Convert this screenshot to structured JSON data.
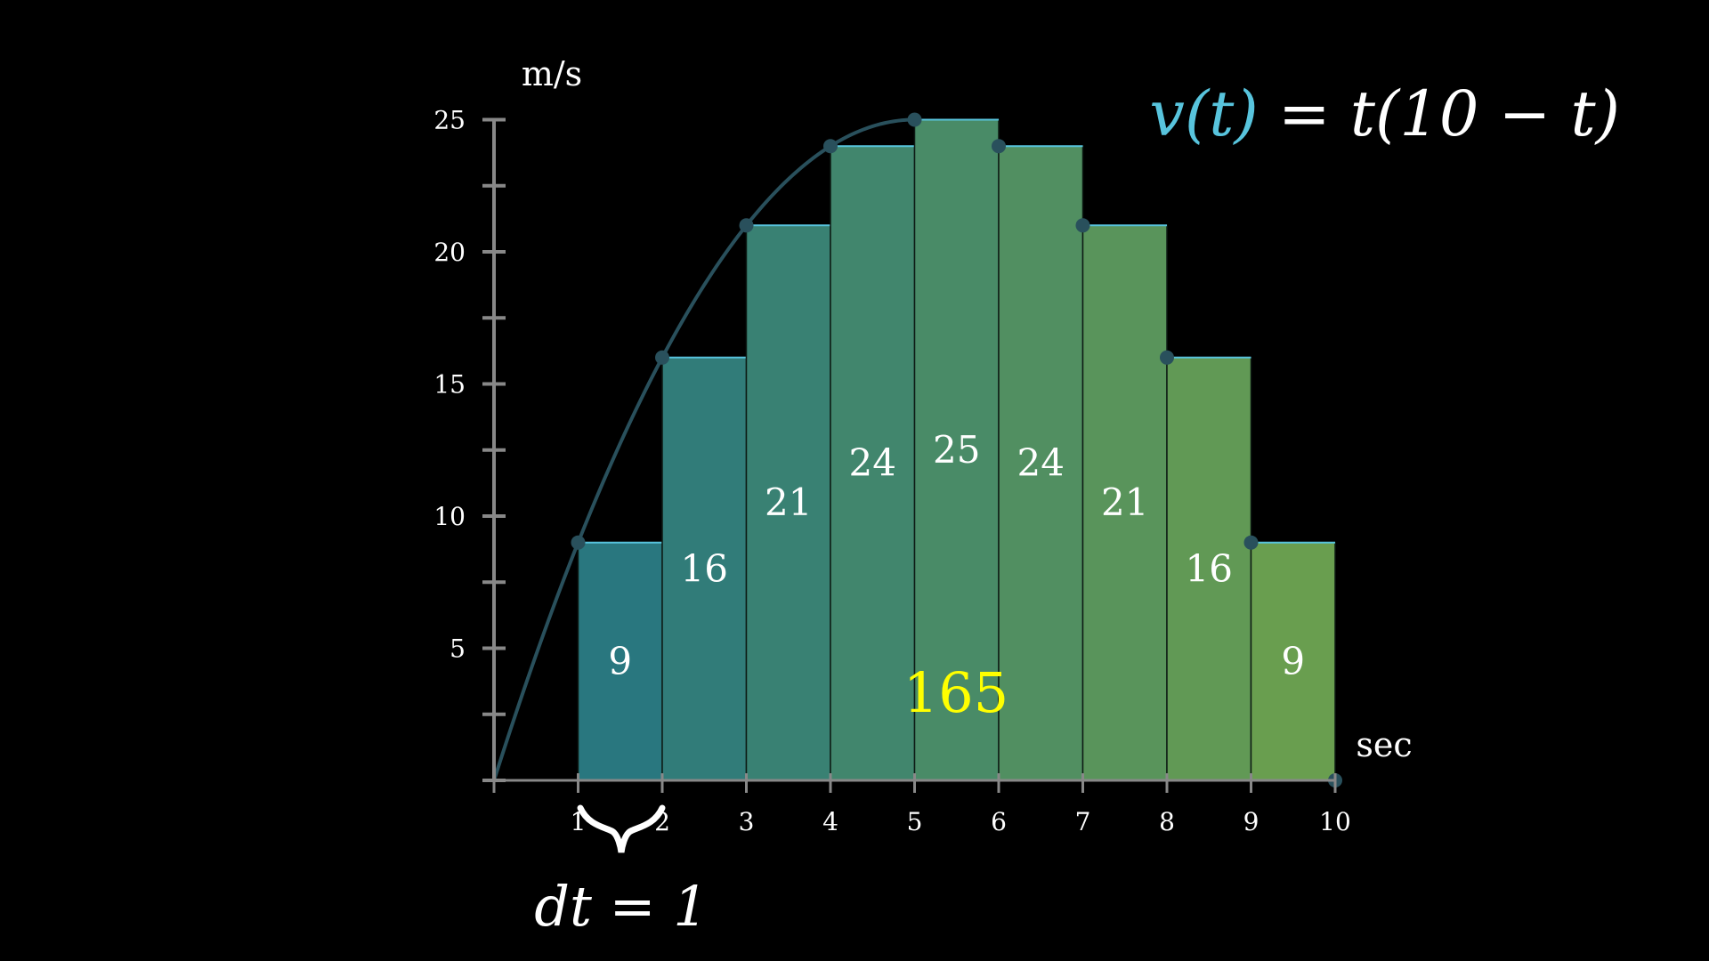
{
  "chart_data": {
    "type": "bar",
    "title": "",
    "xlabel": "sec",
    "ylabel": "m/s",
    "xlim": [
      0,
      10
    ],
    "ylim": [
      0,
      25
    ],
    "x_ticks": [
      "1",
      "2",
      "3",
      "4",
      "5",
      "6",
      "7",
      "8",
      "9",
      "10"
    ],
    "y_ticks": [
      "5",
      "10",
      "15",
      "20",
      "25"
    ],
    "bars": [
      {
        "x_start": 1,
        "x_end": 2,
        "value": 9,
        "label": "9"
      },
      {
        "x_start": 2,
        "x_end": 3,
        "value": 16,
        "label": "16"
      },
      {
        "x_start": 3,
        "x_end": 4,
        "value": 21,
        "label": "21"
      },
      {
        "x_start": 4,
        "x_end": 5,
        "value": 24,
        "label": "24"
      },
      {
        "x_start": 5,
        "x_end": 6,
        "value": 25,
        "label": "25"
      },
      {
        "x_start": 6,
        "x_end": 7,
        "value": 24,
        "label": "24"
      },
      {
        "x_start": 7,
        "x_end": 8,
        "value": 21,
        "label": "21"
      },
      {
        "x_start": 8,
        "x_end": 9,
        "value": 16,
        "label": "16"
      },
      {
        "x_start": 9,
        "x_end": 10,
        "value": 9,
        "label": "9"
      }
    ],
    "curve": {
      "formula": "t(10-t)",
      "t_range": [
        0,
        5
      ]
    },
    "sample_points": [
      {
        "t": 1,
        "v": 9
      },
      {
        "t": 2,
        "v": 16
      },
      {
        "t": 3,
        "v": 21
      },
      {
        "t": 4,
        "v": 24
      },
      {
        "t": 5,
        "v": 25
      },
      {
        "t": 6,
        "v": 24
      },
      {
        "t": 7,
        "v": 21
      },
      {
        "t": 8,
        "v": 16
      },
      {
        "t": 9,
        "v": 9
      },
      {
        "t": 10,
        "v": 0
      }
    ],
    "sum_label": "165",
    "function_label": {
      "lhs": "v(t)",
      "rhs": "= t(10 − t)"
    },
    "dt_label": "dt = 1",
    "colors": {
      "curve": "#29505c",
      "lhs": "#58c4dd",
      "sum": "#ffff00",
      "bar_start": "#29777f",
      "bar_end": "#699e4f",
      "axis": "#888888"
    }
  }
}
